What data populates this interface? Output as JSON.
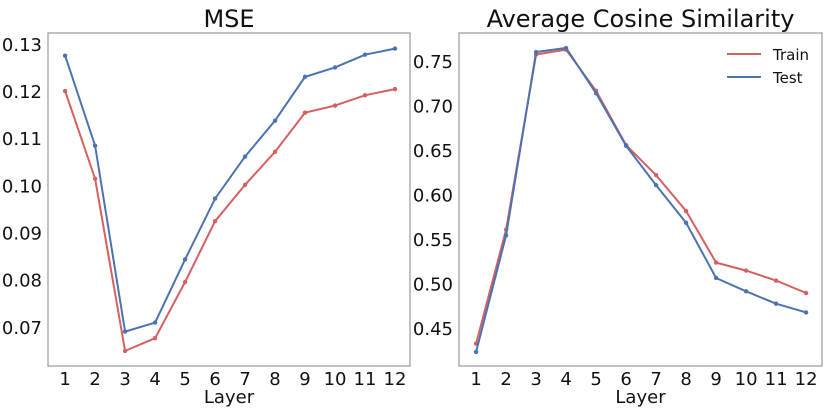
{
  "chart_data": [
    {
      "type": "line",
      "title": "MSE",
      "xlabel": "Layer",
      "ylabel": "",
      "x": [
        1,
        2,
        3,
        4,
        5,
        6,
        7,
        8,
        9,
        10,
        11,
        12
      ],
      "xticks": [
        "1",
        "2",
        "3",
        "4",
        "5",
        "6",
        "7",
        "8",
        "9",
        "10",
        "11",
        "12"
      ],
      "yticks": [
        "0.07",
        "0.08",
        "0.09",
        "0.10",
        "0.11",
        "0.12",
        "0.13"
      ],
      "xlim": [
        0.43,
        12.5
      ],
      "ylim": [
        0.0619,
        0.1325
      ],
      "grid": false,
      "legend": null,
      "series": [
        {
          "name": "Train",
          "color": "#d65f5f",
          "values": [
            0.1202,
            0.1016,
            0.0651,
            0.0678,
            0.0797,
            0.0926,
            0.1003,
            0.1073,
            0.1156,
            0.1171,
            0.1193,
            0.1206
          ]
        },
        {
          "name": "Test",
          "color": "#4c72b0",
          "values": [
            0.1277,
            0.1086,
            0.0692,
            0.0711,
            0.0845,
            0.0974,
            0.1063,
            0.1139,
            0.1232,
            0.1252,
            0.1279,
            0.1292
          ]
        }
      ]
    },
    {
      "type": "line",
      "title": "Average Cosine Similarity",
      "xlabel": "Layer",
      "ylabel": "",
      "x": [
        1,
        2,
        3,
        4,
        5,
        6,
        7,
        8,
        9,
        10,
        11,
        12
      ],
      "xticks": [
        "1",
        "2",
        "3",
        "4",
        "5",
        "6",
        "7",
        "8",
        "9",
        "10",
        "11",
        "12"
      ],
      "yticks": [
        "0.45",
        "0.50",
        "0.55",
        "0.60",
        "0.65",
        "0.70",
        "0.75"
      ],
      "xlim": [
        0.43,
        12.53
      ],
      "ylim": [
        0.4086,
        0.7827
      ],
      "grid": false,
      "legend": "top-right",
      "series": [
        {
          "name": "Train",
          "color": "#d65f5f",
          "values": [
            0.4338,
            0.5617,
            0.7586,
            0.7639,
            0.7177,
            0.6568,
            0.623,
            0.5827,
            0.5248,
            0.5158,
            0.5045,
            0.4906
          ]
        },
        {
          "name": "Test",
          "color": "#4c72b0",
          "values": [
            0.4244,
            0.5553,
            0.7613,
            0.7658,
            0.715,
            0.656,
            0.6117,
            0.5695,
            0.5075,
            0.4925,
            0.4786,
            0.4688
          ]
        }
      ]
    }
  ]
}
